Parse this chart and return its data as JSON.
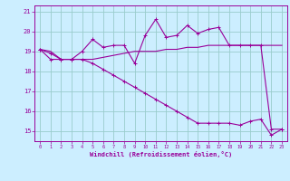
{
  "xlabel": "Windchill (Refroidissement éolien,°C)",
  "bg_color": "#cceeff",
  "line_color": "#990099",
  "grid_color": "#99cccc",
  "spine_color": "#990099",
  "ylim": [
    14.5,
    21.3
  ],
  "xlim": [
    -0.5,
    23.5
  ],
  "yticks": [
    15,
    16,
    17,
    18,
    19,
    20,
    21
  ],
  "xticks": [
    0,
    1,
    2,
    3,
    4,
    5,
    6,
    7,
    8,
    9,
    10,
    11,
    12,
    13,
    14,
    15,
    16,
    17,
    18,
    19,
    20,
    21,
    22,
    23
  ],
  "line1": [
    19.1,
    18.9,
    18.6,
    18.6,
    19.0,
    19.6,
    19.2,
    19.3,
    19.3,
    18.4,
    19.8,
    20.6,
    19.7,
    19.8,
    20.3,
    19.9,
    20.1,
    20.2,
    19.3,
    19.3,
    19.3,
    19.3,
    15.1,
    15.1
  ],
  "line2": [
    19.1,
    19.0,
    18.6,
    18.6,
    18.6,
    18.6,
    18.7,
    18.8,
    18.9,
    19.0,
    19.0,
    19.0,
    19.1,
    19.1,
    19.2,
    19.2,
    19.3,
    19.3,
    19.3,
    19.3,
    19.3,
    19.3,
    19.3,
    19.3
  ],
  "line3": [
    19.1,
    18.6,
    18.6,
    18.6,
    18.6,
    18.4,
    18.1,
    17.8,
    17.5,
    17.2,
    16.9,
    16.6,
    16.3,
    16.0,
    15.7,
    15.4,
    15.4,
    15.4,
    15.4,
    15.3,
    15.5,
    15.6,
    14.8,
    15.1
  ]
}
